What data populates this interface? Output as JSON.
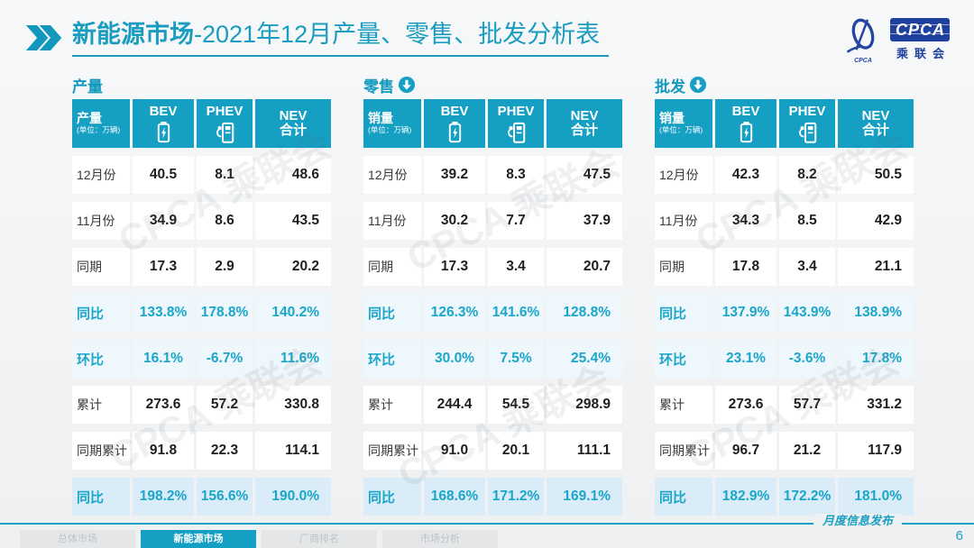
{
  "colors": {
    "accent": "#149fc3",
    "accent_text": "#1aa6ca",
    "table_header_bg": "#149fc3",
    "logo_blue": "#20409f",
    "percent_row_bg": "#eef7fb",
    "percent_strong_row_bg": "#d9ecf7",
    "page_bg": "#eef0f1"
  },
  "header": {
    "title_highlight": "新能源市场",
    "title_rest": "-2021年12月产量、零售、批发分析表",
    "logo": {
      "acronym": "CPCA",
      "org_name": "乘联会",
      "emblem_caption": "CPCA"
    }
  },
  "watermark_text": "CPCA 乘联会",
  "tables": [
    {
      "section_label": "产量",
      "show_arrow": false,
      "corner_label": "产量",
      "unit": "(单位：万辆)",
      "col_bev": "BEV",
      "col_phev": "PHEV",
      "col_nev_line1": "NEV",
      "col_nev_line2": "合计",
      "rows": [
        {
          "label": "12月份",
          "values": [
            "40.5",
            "8.1",
            "48.6"
          ],
          "style": "plain"
        },
        {
          "label": "11月份",
          "values": [
            "34.9",
            "8.6",
            "43.5"
          ],
          "style": "plain"
        },
        {
          "label": "同期",
          "values": [
            "17.3",
            "2.9",
            "20.2"
          ],
          "style": "plain"
        },
        {
          "label": "同比",
          "values": [
            "133.8%",
            "178.8%",
            "140.2%"
          ],
          "style": "percent"
        },
        {
          "label": "环比",
          "values": [
            "16.1%",
            "-6.7%",
            "11.6%"
          ],
          "style": "percent"
        },
        {
          "label": "累计",
          "values": [
            "273.6",
            "57.2",
            "330.8"
          ],
          "style": "plain"
        },
        {
          "label": "同期累计",
          "values": [
            "91.8",
            "22.3",
            "114.1"
          ],
          "style": "plain"
        },
        {
          "label": "同比",
          "values": [
            "198.2%",
            "156.6%",
            "190.0%"
          ],
          "style": "percent_strong"
        }
      ]
    },
    {
      "section_label": "零售",
      "show_arrow": true,
      "corner_label": "销量",
      "unit": "(单位：万辆)",
      "col_bev": "BEV",
      "col_phev": "PHEV",
      "col_nev_line1": "NEV",
      "col_nev_line2": "合计",
      "rows": [
        {
          "label": "12月份",
          "values": [
            "39.2",
            "8.3",
            "47.5"
          ],
          "style": "plain"
        },
        {
          "label": "11月份",
          "values": [
            "30.2",
            "7.7",
            "37.9"
          ],
          "style": "plain"
        },
        {
          "label": "同期",
          "values": [
            "17.3",
            "3.4",
            "20.7"
          ],
          "style": "plain"
        },
        {
          "label": "同比",
          "values": [
            "126.3%",
            "141.6%",
            "128.8%"
          ],
          "style": "percent"
        },
        {
          "label": "环比",
          "values": [
            "30.0%",
            "7.5%",
            "25.4%"
          ],
          "style": "percent"
        },
        {
          "label": "累计",
          "values": [
            "244.4",
            "54.5",
            "298.9"
          ],
          "style": "plain"
        },
        {
          "label": "同期累计",
          "values": [
            "91.0",
            "20.1",
            "111.1"
          ],
          "style": "plain"
        },
        {
          "label": "同比",
          "values": [
            "168.6%",
            "171.2%",
            "169.1%"
          ],
          "style": "percent_strong"
        }
      ]
    },
    {
      "section_label": "批发",
      "show_arrow": true,
      "corner_label": "销量",
      "unit": "(单位：万辆)",
      "col_bev": "BEV",
      "col_phev": "PHEV",
      "col_nev_line1": "NEV",
      "col_nev_line2": "合计",
      "rows": [
        {
          "label": "12月份",
          "values": [
            "42.3",
            "8.2",
            "50.5"
          ],
          "style": "plain"
        },
        {
          "label": "11月份",
          "values": [
            "34.3",
            "8.5",
            "42.9"
          ],
          "style": "plain"
        },
        {
          "label": "同期",
          "values": [
            "17.8",
            "3.4",
            "21.1"
          ],
          "style": "plain"
        },
        {
          "label": "同比",
          "values": [
            "137.9%",
            "143.9%",
            "138.9%"
          ],
          "style": "percent"
        },
        {
          "label": "环比",
          "values": [
            "23.1%",
            "-3.6%",
            "17.8%"
          ],
          "style": "percent"
        },
        {
          "label": "累计",
          "values": [
            "273.6",
            "57.7",
            "331.2"
          ],
          "style": "plain"
        },
        {
          "label": "同期累计",
          "values": [
            "96.7",
            "21.2",
            "117.9"
          ],
          "style": "plain"
        },
        {
          "label": "同比",
          "values": [
            "182.9%",
            "172.2%",
            "181.0%"
          ],
          "style": "percent_strong"
        }
      ]
    }
  ],
  "footer": {
    "publish_label": "月度信息发布",
    "page_number": "6",
    "tabs": [
      {
        "label": "总体市场",
        "active": false
      },
      {
        "label": "新能源市场",
        "active": true
      },
      {
        "label": "厂商排名",
        "active": false
      },
      {
        "label": "市场分析",
        "active": false
      }
    ]
  }
}
